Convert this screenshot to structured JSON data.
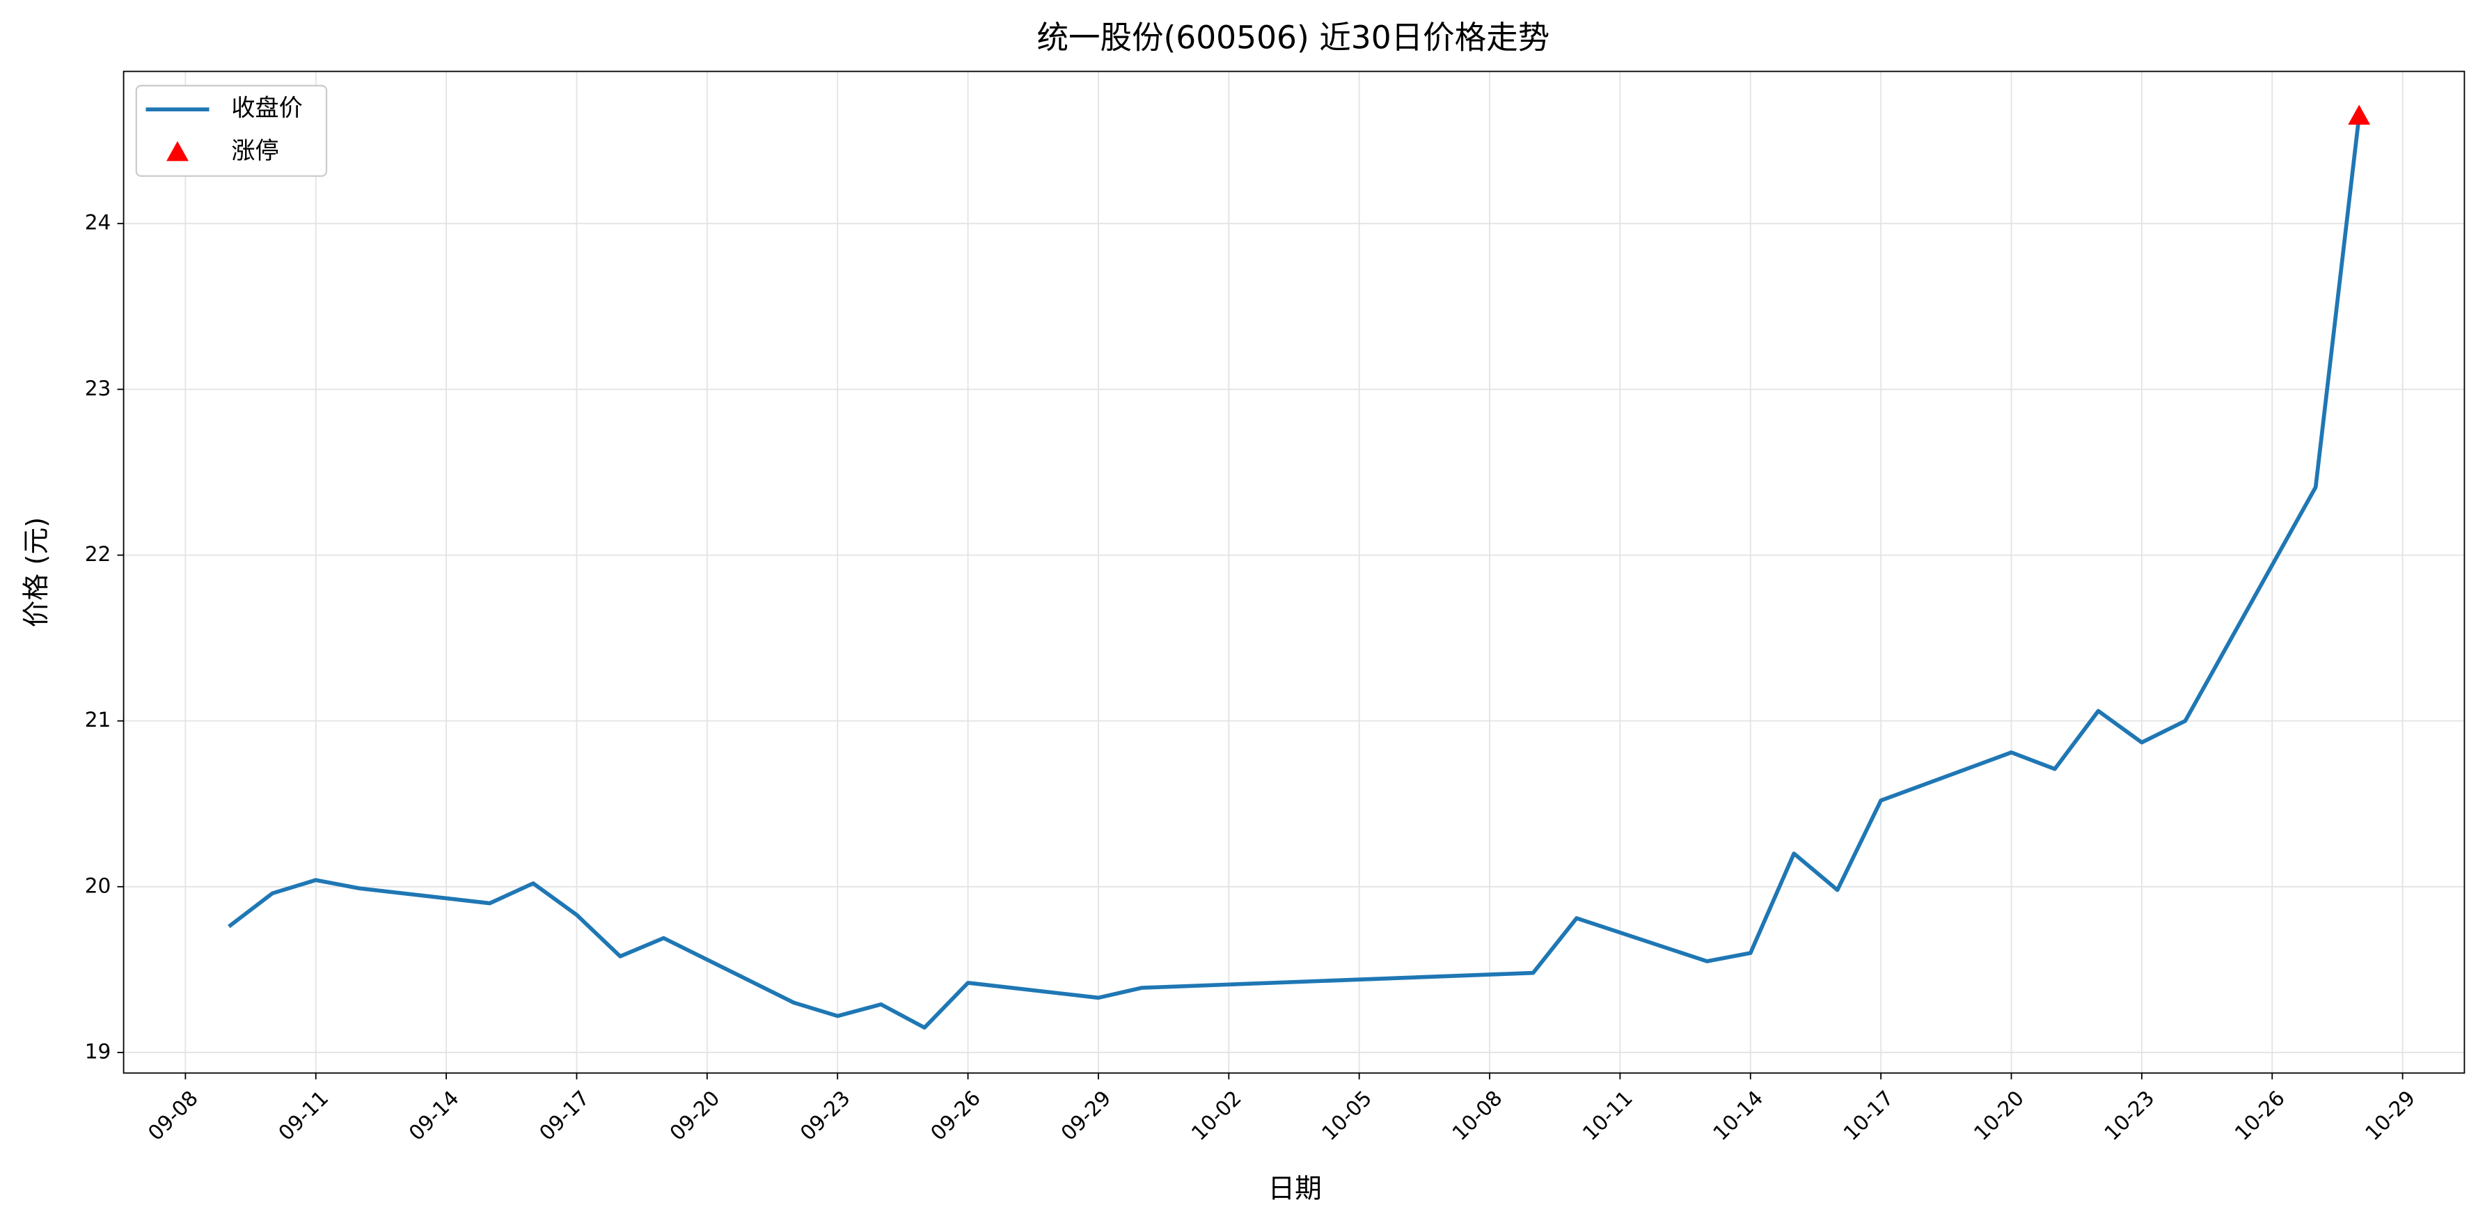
{
  "chart_data": {
    "type": "line",
    "title": "统一股份(600506) 近30日价格走势",
    "xlabel": "日期",
    "ylabel": "价格 (元)",
    "x": [
      "09-09",
      "09-10",
      "09-11",
      "09-12",
      "09-15",
      "09-16",
      "09-17",
      "09-18",
      "09-19",
      "09-22",
      "09-23",
      "09-24",
      "09-25",
      "09-26",
      "09-29",
      "09-30",
      "10-09",
      "10-10",
      "10-13",
      "10-14",
      "10-15",
      "10-16",
      "10-17",
      "10-20",
      "10-21",
      "10-22",
      "10-23",
      "10-24",
      "10-27",
      "10-28"
    ],
    "series": [
      {
        "name": "收盘价",
        "color": "#1f77b4",
        "values": [
          19.76,
          19.96,
          20.04,
          19.99,
          19.9,
          20.02,
          19.83,
          19.58,
          19.69,
          19.3,
          19.22,
          19.29,
          19.15,
          19.42,
          19.33,
          19.39,
          19.48,
          19.81,
          19.55,
          19.6,
          20.2,
          19.98,
          20.52,
          20.81,
          20.71,
          21.06,
          20.87,
          21.0,
          22.41,
          24.65
        ]
      },
      {
        "name": "涨停",
        "type": "scatter",
        "color": "#ff0000",
        "x": [
          "10-28"
        ],
        "values": [
          24.65
        ]
      }
    ],
    "xticks": [
      "09-08",
      "09-11",
      "09-14",
      "09-17",
      "09-20",
      "09-23",
      "09-26",
      "09-29",
      "10-02",
      "10-05",
      "10-08",
      "10-11",
      "10-14",
      "10-17",
      "10-20",
      "10-23",
      "10-26",
      "10-29"
    ],
    "ylim": [
      18.876,
      24.918
    ],
    "yticks": [
      19,
      20,
      21,
      22,
      23,
      24
    ],
    "grid": true,
    "legend": "upper-left"
  }
}
